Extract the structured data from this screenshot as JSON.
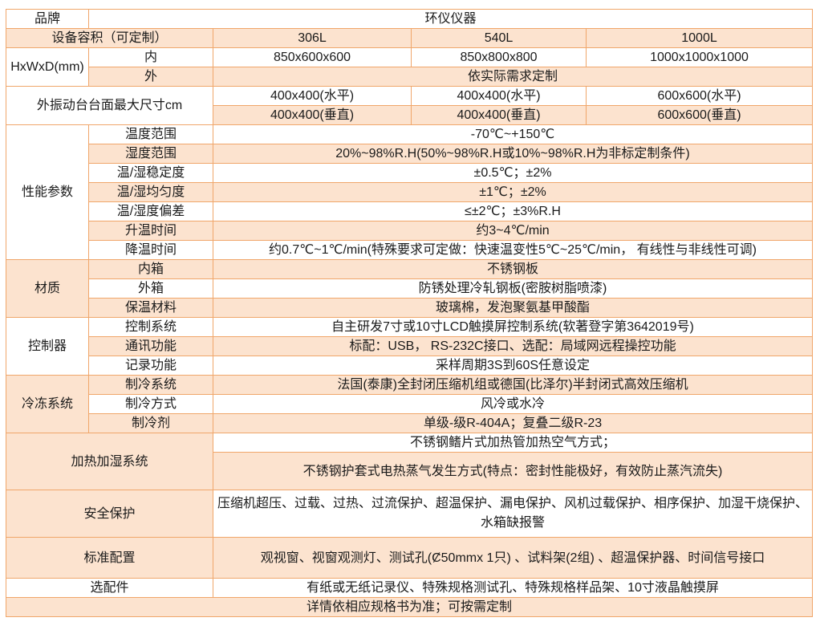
{
  "brand": {
    "label": "品牌",
    "value": "环仪仪器"
  },
  "capacity": {
    "label": "设备容积（可定制）",
    "values": [
      "306L",
      "540L",
      "1000L"
    ]
  },
  "dimensions": {
    "label": "HxWxD(mm)",
    "inner_label": "内",
    "inner": [
      "850x600x600",
      "850x800x800",
      "1000x1000x1000"
    ],
    "outer_label": "外",
    "outer_value": "依实际需求定制"
  },
  "vibration": {
    "label": "外振动台台面最大尺寸cm",
    "horizontal": [
      "400x400(水平)",
      "400x400(水平)",
      "600x600(水平)"
    ],
    "vertical": [
      "400x400(垂直)",
      "400x400(垂直)",
      "600x600(垂直)"
    ]
  },
  "performance": {
    "label": "性能参数",
    "rows": [
      {
        "label": "温度范围",
        "value": "-70℃~+150℃"
      },
      {
        "label": "湿度范围",
        "value": "20%~98%R.H(50%~98%R.H或10%~98%R.H为非标定制条件)"
      },
      {
        "label": "温/湿稳定度",
        "value": "±0.5℃；±2%"
      },
      {
        "label": "温/湿均匀度",
        "value": "±1℃；±2%"
      },
      {
        "label": "温/湿度偏差",
        "value": "≤±2℃；±3%R.H"
      },
      {
        "label": "升温时间",
        "value": "约3~4℃/min"
      },
      {
        "label": "降温时间",
        "value": "约0.7℃~1℃/min(特殊要求可定做：快速温变性5℃~25℃/min， 有线性与非线性可调)"
      }
    ]
  },
  "material": {
    "label": "材质",
    "rows": [
      {
        "label": "内箱",
        "value": "不锈钢板"
      },
      {
        "label": "外箱",
        "value": "防锈处理冷轧钢板(密胺树脂喷漆)"
      },
      {
        "label": "保温材料",
        "value": "玻璃棉，发泡聚氨基甲酸酯"
      }
    ]
  },
  "controller": {
    "label": "控制器",
    "rows": [
      {
        "label": "控制系统",
        "value": "自主研发7寸或10寸LCD触摸屏控制系统(软著登字第3642019号)"
      },
      {
        "label": "通讯功能",
        "value": "标配：USB， RS-232C接口、选配：局域网远程操控功能"
      },
      {
        "label": "记录功能",
        "value": "采样周期3S到60S任意设定"
      }
    ]
  },
  "refrigeration": {
    "label": "冷冻系统",
    "rows": [
      {
        "label": "制冷系统",
        "value": "法国(泰康)全封闭压缩机组或德国(比泽尔)半封闭式高效压缩机"
      },
      {
        "label": "制冷方式",
        "value": "风冷或水冷"
      },
      {
        "label": "制冷剂",
        "value": "单级-级R-404A；复叠二级R-23"
      }
    ]
  },
  "heating": {
    "label": "加热加湿系统",
    "lines": [
      "不锈钢鳍片式加热管加热空气方式；",
      "不锈钢护套式电热蒸气发生方式(特点：密封性能极好，有效防止蒸汽流失)"
    ]
  },
  "safety": {
    "label": "安全保护",
    "value": "压缩机超压、过载、过热、过流保护、超温保护、漏电保护、风机过载保护、相序保护、加湿干烧保护、水箱缺报警"
  },
  "standard": {
    "label": "标准配置",
    "value": "观视窗、视窗观测灯、测试孔(Ȼ50mmx 1只) 、试料架(2组) 、超温保护器、时间信号接口"
  },
  "options": {
    "label": "选配件",
    "value": "有纸或无纸记录仪、特殊规格测试孔、特殊规格样品架、10寸液晶触摸屏"
  },
  "footer": "详情依相应规格书为准；可按需定制",
  "colors": {
    "border": "#f0a66a",
    "row_tint": "#fce3cf"
  }
}
